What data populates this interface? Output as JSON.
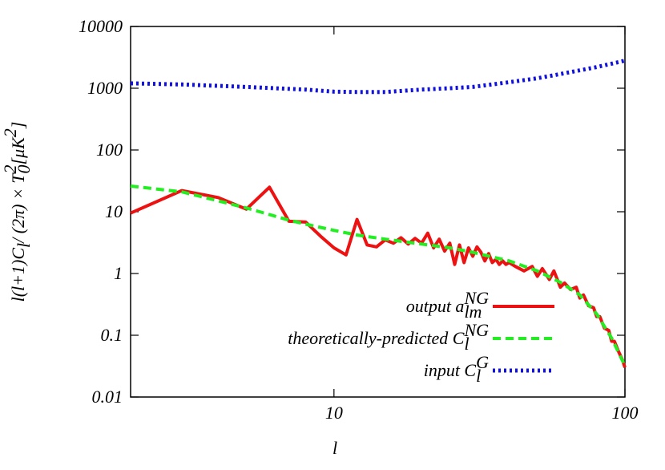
{
  "chart_data": {
    "type": "line",
    "xlabel": "l",
    "ylabel": [
      {
        "t": "l(l+1)C"
      },
      {
        "t": "l",
        "sub": true
      },
      {
        "t": " / (2π) × T"
      },
      {
        "t": "0",
        "sub": true
      },
      {
        "t": "2",
        "sup": true
      },
      {
        "t": " [μK"
      },
      {
        "t": "2",
        "sup": true
      },
      {
        "t": "]"
      }
    ],
    "xscale": "log",
    "yscale": "log",
    "xlim": [
      2,
      100
    ],
    "ylim": [
      0.01,
      10000
    ],
    "xticks": [
      10,
      100
    ],
    "yticks": [
      0.01,
      0.1,
      1,
      10,
      100,
      1000,
      10000
    ],
    "legend": "lower right",
    "series": [
      {
        "name": [
          {
            "t": "output a"
          },
          {
            "t": "lm",
            "sub": true
          },
          {
            "t": "NG",
            "sup": true
          }
        ],
        "color": "#ee1111",
        "style": "solid",
        "x": [
          2,
          3,
          4,
          5,
          6,
          7,
          8,
          9,
          10,
          11,
          12,
          13,
          14,
          15,
          16,
          17,
          18,
          19,
          20,
          21,
          22,
          23,
          24,
          25,
          26,
          27,
          28,
          29,
          30,
          31,
          32,
          33,
          34,
          35,
          36,
          37,
          38,
          39,
          40,
          42,
          45,
          48,
          50,
          52,
          55,
          57,
          60,
          62,
          65,
          68,
          70,
          72,
          75,
          78,
          80,
          82,
          85,
          88,
          90,
          92,
          95,
          98,
          100
        ],
        "values": [
          9.5,
          22,
          17,
          11,
          25,
          7,
          6.8,
          4,
          2.6,
          2,
          7.5,
          2.9,
          2.7,
          3.5,
          3.1,
          3.8,
          3,
          3.7,
          3.1,
          4.5,
          2.6,
          3.6,
          2.3,
          3.1,
          1.4,
          2.9,
          1.5,
          2.6,
          1.9,
          2.7,
          2.2,
          1.6,
          2.1,
          1.5,
          1.7,
          1.4,
          1.6,
          1.4,
          1.5,
          1.3,
          1.1,
          1.3,
          0.9,
          1.2,
          0.8,
          1.1,
          0.6,
          0.7,
          0.55,
          0.6,
          0.4,
          0.45,
          0.3,
          0.28,
          0.2,
          0.2,
          0.13,
          0.12,
          0.08,
          0.08,
          0.055,
          0.04,
          0.03
        ]
      },
      {
        "name": [
          {
            "t": "theoretically-predicted C"
          },
          {
            "t": "l",
            "sub": true
          },
          {
            "t": "NG",
            "sup": true
          }
        ],
        "color": "#22ee22",
        "style": "dashed",
        "x": [
          2,
          3,
          4,
          5,
          6,
          7,
          8,
          10,
          12,
          15,
          20,
          25,
          30,
          40,
          50,
          60,
          70,
          80,
          90,
          100
        ],
        "values": [
          26,
          21,
          15,
          11.5,
          9,
          7.3,
          6.3,
          5,
          4.2,
          3.6,
          3,
          2.6,
          2.2,
          1.6,
          1.1,
          0.72,
          0.45,
          0.22,
          0.09,
          0.032
        ]
      },
      {
        "name": [
          {
            "t": "input C"
          },
          {
            "t": "l",
            "sub": true
          },
          {
            "t": "G",
            "sup": true
          }
        ],
        "color": "#1111dd",
        "style": "dotted",
        "x": [
          2,
          3,
          5,
          8,
          10,
          12,
          15,
          20,
          25,
          30,
          40,
          50,
          60,
          70,
          80,
          90,
          100
        ],
        "values": [
          1200,
          1150,
          1050,
          950,
          880,
          870,
          870,
          950,
          1000,
          1050,
          1250,
          1450,
          1700,
          1950,
          2200,
          2500,
          2800
        ]
      }
    ]
  }
}
